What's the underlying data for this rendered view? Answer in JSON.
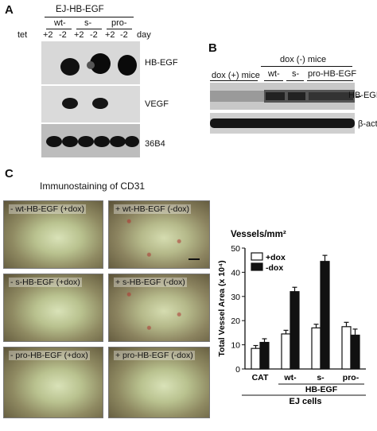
{
  "panelA": {
    "letter": "A",
    "title": "EJ-HB-EGF",
    "groups": [
      "wt-",
      "s-",
      "pro-"
    ],
    "tet_label": "tet",
    "lanes": [
      "+2",
      "-2",
      "+2",
      "-2",
      "+2",
      "-2"
    ],
    "day_label": "day",
    "blots": [
      "HB-EGF",
      "VEGF",
      "36B4"
    ]
  },
  "panelB": {
    "letter": "B",
    "dox_pos": "dox (+) mice",
    "dox_neg": "dox (-) mice",
    "groups": [
      "wt-",
      "s-",
      "pro-HB-EGF"
    ],
    "blots": [
      "HB-EGF",
      "β-actin"
    ]
  },
  "panelC": {
    "letter": "C",
    "title": "Immunostaining of CD31",
    "images": [
      "- wt-HB-EGF (+dox)",
      "+ wt-HB-EGF (-dox)",
      "- s-HB-EGF (+dox)",
      "+ s-HB-EGF (-dox)",
      "- pro-HB-EGF (+dox)",
      "+ pro-HB-EGF (-dox)"
    ]
  },
  "chart_data": {
    "type": "bar",
    "title": "Vessels/mm²",
    "ylabel": "Total Vessel Area (x 10⁴)",
    "ylim": [
      0,
      50
    ],
    "yticks": [
      0,
      10,
      20,
      30,
      40,
      50
    ],
    "categories": [
      "CAT",
      "wt-",
      "s-",
      "pro-"
    ],
    "group_label": "HB-EGF",
    "xlabel": "EJ cells",
    "legend": [
      "+dox",
      "-dox"
    ],
    "series": [
      {
        "name": "+dox",
        "color": "#ffffff",
        "values": [
          8.5,
          14.5,
          17,
          17.5
        ],
        "errors": [
          1.2,
          1.5,
          1.5,
          1.8
        ]
      },
      {
        "name": "-dox",
        "color": "#111111",
        "values": [
          11,
          32,
          44.5,
          14
        ],
        "errors": [
          1.5,
          1.8,
          2.5,
          2.5
        ]
      }
    ]
  }
}
